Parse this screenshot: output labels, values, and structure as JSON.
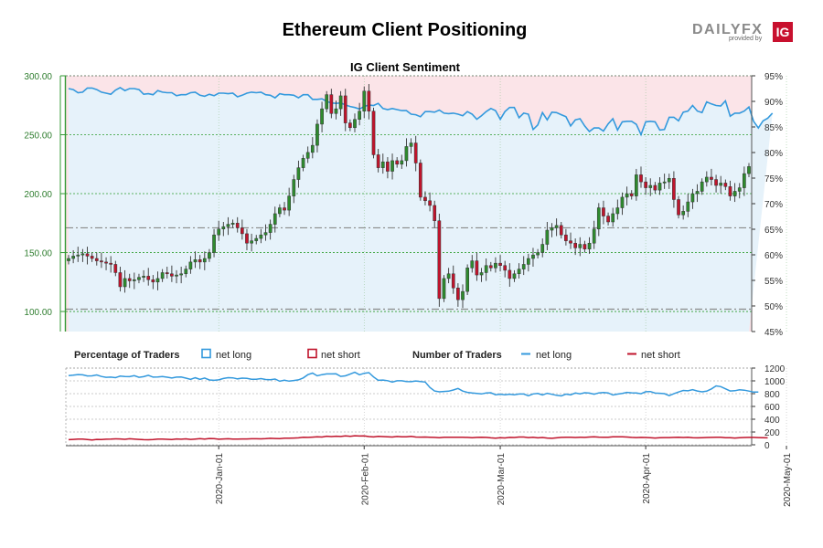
{
  "header": {
    "title": "Ethereum Client Positioning",
    "logo_text_left": "DAILY",
    "logo_text_right": "FX",
    "logo_provided": "provided by",
    "logo_badge": "IG"
  },
  "colors": {
    "up": "#2e8b2e",
    "down": "#c0142c",
    "long": "#3399dd",
    "short": "#c0142c",
    "axis_green": "#339933",
    "long_fill": "#e6f2fa",
    "short_fill": "#fbe4e8"
  },
  "legend": {
    "pct_title": "Percentage of Traders",
    "pct_long": "net long",
    "pct_short": "net short",
    "num_title": "Number of Traders",
    "num_long": "net long",
    "num_short": "net short"
  },
  "chart_data": [
    {
      "type": "candlestick",
      "title": "IG Client Sentiment",
      "ylim": [
        83,
        300
      ],
      "y_ticks": [
        "100.00",
        "150.00",
        "200.00",
        "250.00",
        "300.00"
      ],
      "y_right_ticks": [
        "45%",
        "50%",
        "55%",
        "60%",
        "65%",
        "70%",
        "75%",
        "80%",
        "85%",
        "90%",
        "95%"
      ],
      "y_right_range": [
        45,
        95
      ],
      "dashed_levels": [
        102,
        171
      ],
      "x_labels": [
        "2020-Jan-01",
        "2020-Feb-01",
        "2020-Mar-01",
        "2020-Apr-01",
        "2020-May-01"
      ],
      "x_label_index": [
        32,
        63,
        92,
        123,
        153
      ],
      "close": [
        145,
        147,
        148,
        149,
        147,
        145,
        143,
        142,
        141,
        140,
        133,
        121,
        128,
        126,
        127,
        129,
        130,
        127,
        125,
        128,
        133,
        132,
        130,
        131,
        132,
        136,
        142,
        144,
        142,
        145,
        150,
        165,
        170,
        172,
        174,
        175,
        171,
        166,
        158,
        160,
        162,
        165,
        167,
        174,
        183,
        188,
        186,
        198,
        212,
        222,
        230,
        235,
        241,
        259,
        272,
        284,
        268,
        272,
        283,
        260,
        256,
        263,
        270,
        287,
        270,
        233,
        222,
        227,
        219,
        228,
        225,
        228,
        240,
        243,
        226,
        197,
        194,
        190,
        177,
        111,
        128,
        132,
        120,
        110,
        117,
        137,
        143,
        131,
        133,
        139,
        137,
        141,
        139,
        135,
        128,
        132,
        136,
        140,
        145,
        148,
        150,
        157,
        169,
        171,
        173,
        165,
        160,
        158,
        154,
        157,
        153,
        158,
        170,
        188,
        181,
        176,
        183,
        188,
        197,
        200,
        198,
        216,
        210,
        205,
        207,
        203,
        209,
        210,
        213,
        195,
        182,
        185,
        193,
        200,
        202,
        210,
        214,
        212,
        207,
        209,
        206,
        198,
        202,
        205,
        217,
        223
      ],
      "x_range": [
        0,
        150
      ],
      "secondary_line_pct_long": [
        92.5,
        92.3,
        91.7,
        91.8,
        92.6,
        92.6,
        92.3,
        91.8,
        91.6,
        91.4,
        92.2,
        92.7,
        92.1,
        92.5,
        92.5,
        92.3,
        91.4,
        91.5,
        91.3,
        92.1,
        91.8,
        91.7,
        91.7,
        91.1,
        91.3,
        91.3,
        91.7,
        91.8,
        91.2,
        91.0,
        91.4,
        91.1,
        91.6,
        91.6,
        91.5,
        91.6,
        90.9,
        91.2,
        91.6,
        91.8,
        91.7,
        91.8,
        91.3,
        91.2,
        90.7,
        91.5,
        91.3,
        91.3,
        91.2,
        90.7,
        91.3,
        91.3,
        90.4,
        90.4,
        90.5,
        90.0,
        89.7,
        89.6,
        89.7,
        89.3,
        89.0,
        88.8,
        88.5,
        89.0,
        89.3,
        89.2,
        89.6,
        88.6,
        88.4,
        88.6,
        88.4,
        88.2,
        88.2,
        87.5,
        87.4,
        87.0,
        88.0,
        88.0,
        87.9,
        88.3,
        87.7,
        87.6,
        87.7,
        87.5,
        87.2,
        88.0,
        87.5,
        86.5,
        87.2,
        88.0,
        88.6,
        88.2,
        86.5,
        88.0,
        88.8,
        88.8,
        86.8,
        87.7,
        87.5,
        84.5,
        85.4,
        87.8,
        86.4,
        87.9,
        87.8,
        87.4,
        87.0,
        85.2,
        86.4,
        86.6,
        85.2,
        84.1,
        84.8,
        84.8,
        84.2,
        85.6,
        86.6,
        84.4,
        86.0,
        86.1,
        86.1,
        85.5,
        83.5,
        86.0,
        86.1,
        86.0,
        84.4,
        84.5,
        86.9,
        86.9,
        86.2,
        87.9,
        88.1,
        89.2,
        88.1,
        87.8,
        89.9,
        89.5,
        89.2,
        89.1,
        90.1,
        87.1,
        87.7,
        87.7,
        88.1,
        88.9,
        86.1,
        84.8,
        86.2,
        86.7,
        87.7
      ]
    },
    {
      "type": "line",
      "y_ticks": [
        "0",
        "200",
        "400",
        "600",
        "800",
        "1000",
        "1200"
      ],
      "ylim": [
        0,
        1200
      ],
      "series": [
        {
          "name": "net long",
          "values": [
            1083,
            1089,
            1099,
            1095,
            1077,
            1079,
            1093,
            1068,
            1055,
            1058,
            1050,
            1075,
            1069,
            1066,
            1082,
            1055,
            1065,
            1087,
            1059,
            1062,
            1069,
            1057,
            1045,
            1059,
            1060,
            1043,
            1025,
            1048,
            1024,
            1044,
            1014,
            1009,
            1016,
            1037,
            1050,
            1047,
            1031,
            1043,
            1038,
            1026,
            1025,
            1036,
            1021,
            1018,
            1029,
            995,
            1010,
            996,
            1006,
            1015,
            1046,
            1097,
            1121,
            1079,
            1097,
            1109,
            1108,
            1110,
            1070,
            1079,
            1106,
            1135,
            1096,
            1118,
            1128,
            1062,
            1009,
            1013,
            1003,
            982,
            1002,
            1001,
            989,
            987,
            998,
            988,
            982,
            897,
            842,
            828,
            834,
            838,
            857,
            881,
            840,
            820,
            810,
            804,
            796,
            810,
            814,
            783,
            792,
            782,
            791,
            783,
            795,
            794,
            767,
            796,
            803,
            780,
            806,
            790,
            775,
            764,
            793,
            782,
            810,
            797,
            814,
            808,
            792,
            811,
            817,
            812,
            778,
            793,
            804,
            820,
            813,
            812,
            799,
            830,
            833,
            809,
            806,
            800,
            769,
            799,
            826,
            850,
            844,
            862,
            841,
            829,
            839,
            875,
            922,
            910,
            876,
            841,
            846,
            860,
            854,
            840,
            825,
            826
          ]
        },
        {
          "name": "net short",
          "values": [
            80,
            85,
            90,
            88,
            82,
            75,
            84,
            81,
            87,
            88,
            93,
            92,
            86,
            94,
            90,
            84,
            80,
            79,
            82,
            90,
            88,
            86,
            83,
            92,
            87,
            93,
            85,
            90,
            96,
            89,
            98,
            97,
            87,
            92,
            94,
            90,
            90,
            92,
            92,
            94,
            95,
            93,
            96,
            102,
            98,
            97,
            103,
            104,
            105,
            109,
            118,
            116,
            120,
            125,
            122,
            135,
            128,
            134,
            130,
            138,
            133,
            142,
            137,
            140,
            128,
            123,
            133,
            128,
            125,
            122,
            130,
            124,
            126,
            131,
            122,
            120,
            121,
            118,
            115,
            112,
            117,
            118,
            117,
            118,
            117,
            115,
            112,
            115,
            118,
            115,
            108,
            104,
            112,
            107,
            116,
            114,
            122,
            121,
            113,
            118,
            109,
            114,
            105,
            101,
            109,
            116,
            119,
            117,
            114,
            118,
            115,
            121,
            126,
            120,
            119,
            119,
            124,
            126,
            124,
            121,
            115,
            113,
            116,
            114,
            110,
            106,
            112,
            113,
            113,
            116,
            119,
            114,
            117,
            112,
            109,
            111,
            114,
            115,
            118,
            119,
            112,
            110,
            106,
            111,
            114,
            116,
            116,
            113,
            110,
            108
          ]
        }
      ]
    }
  ]
}
